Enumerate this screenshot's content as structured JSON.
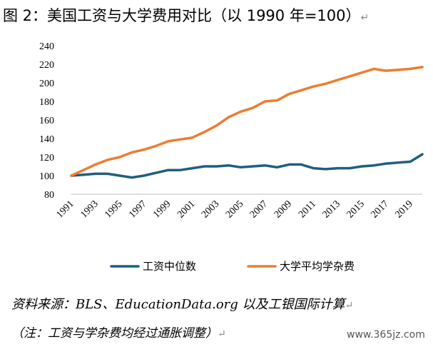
{
  "page": {
    "title": "图 2：美国工资与大学费用对比（以 1990 年=100）",
    "source": "资料来源：BLS、EducationData.org 以及工银国际计算",
    "note": "（注：工资与学杂费均经过通胀调整）",
    "watermark": "www.365jz.com",
    "para_mark": "↵"
  },
  "chart_data": {
    "type": "line",
    "title": "美国工资与大学费用对比（以 1990 年=100）",
    "x": [
      1991,
      1992,
      1993,
      1994,
      1995,
      1996,
      1997,
      1998,
      1999,
      2000,
      2001,
      2002,
      2003,
      2004,
      2005,
      2006,
      2007,
      2008,
      2009,
      2010,
      2011,
      2012,
      2013,
      2014,
      2015,
      2016,
      2017,
      2018,
      2019,
      2020
    ],
    "x_ticks": [
      "1991",
      "1993",
      "1995",
      "1997",
      "1999",
      "2001",
      "2003",
      "2005",
      "2007",
      "2009",
      "2011",
      "2013",
      "2015",
      "2017",
      "2019"
    ],
    "y_ticks": [
      80,
      100,
      120,
      140,
      160,
      180,
      200,
      220,
      240
    ],
    "ylim": [
      80,
      240
    ],
    "grid": false,
    "legend_position": "bottom",
    "series": [
      {
        "name": "工资中位数",
        "color": "#1f5f7f",
        "values": [
          100,
          101,
          102,
          102,
          100,
          98,
          100,
          103,
          106,
          106,
          108,
          110,
          110,
          111,
          109,
          110,
          111,
          109,
          112,
          112,
          108,
          107,
          108,
          108,
          110,
          111,
          113,
          114,
          115,
          123
        ]
      },
      {
        "name": "大学平均学杂费",
        "color": "#ed7d31",
        "values": [
          100,
          106,
          112,
          117,
          120,
          125,
          128,
          132,
          137,
          139,
          141,
          147,
          154,
          163,
          169,
          173,
          180,
          181,
          188,
          192,
          196,
          199,
          203,
          207,
          211,
          215,
          213,
          214,
          215,
          217
        ]
      }
    ]
  }
}
